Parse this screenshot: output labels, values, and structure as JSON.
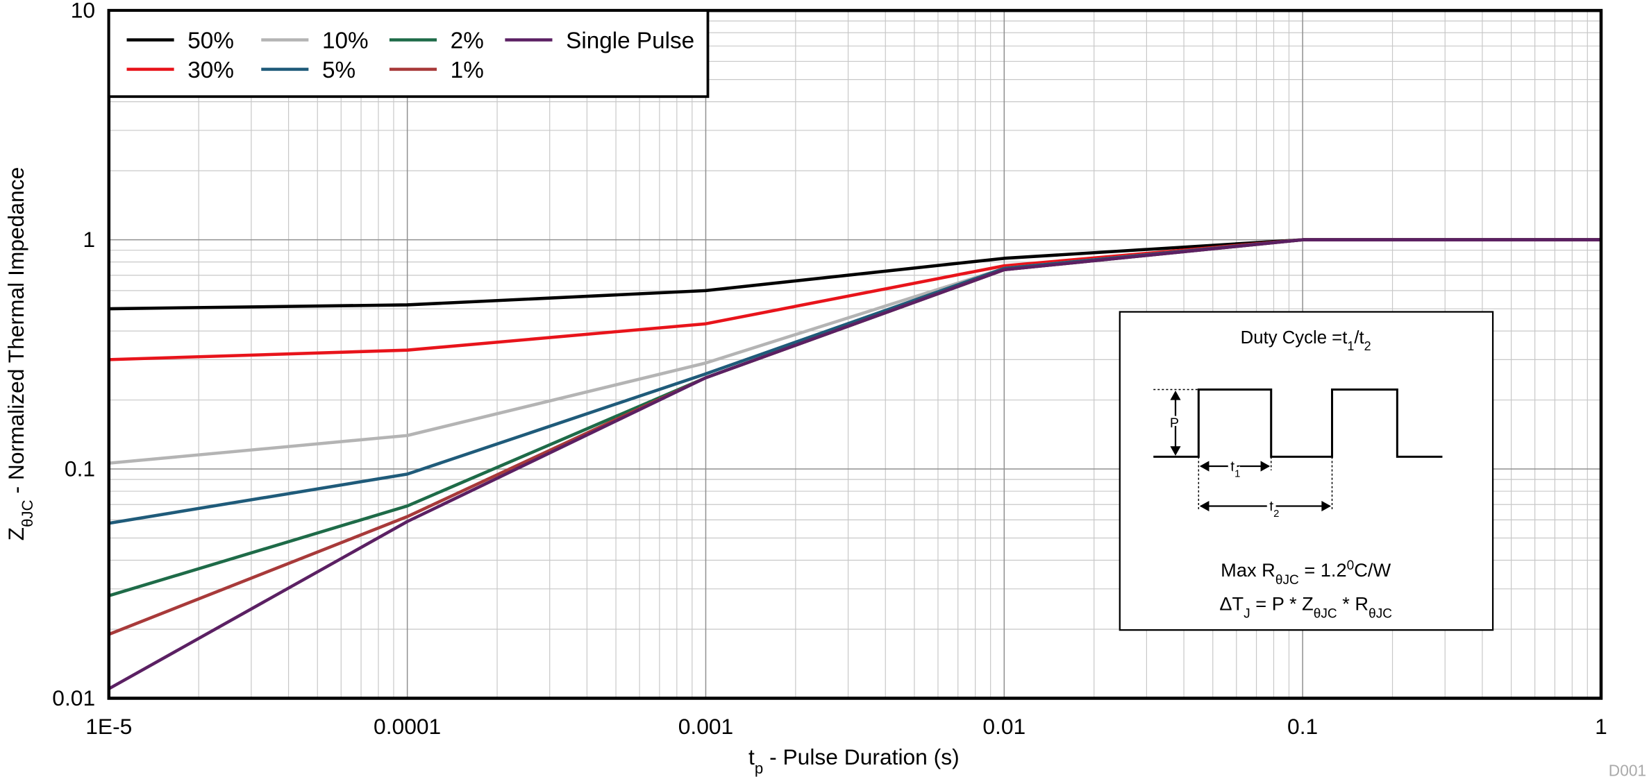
{
  "chart_data": {
    "type": "line",
    "x_label": [
      "t",
      "p",
      " - Pulse Duration (s)"
    ],
    "y_label": [
      "Z",
      "θJC",
      " - Normalized Thermal Impedance"
    ],
    "x": [
      1e-05,
      0.0001,
      0.001,
      0.01,
      0.1,
      1
    ],
    "series": [
      {
        "name": "50%",
        "color": "#000000",
        "values": [
          0.5,
          0.52,
          0.6,
          0.83,
          1,
          1
        ]
      },
      {
        "name": "30%",
        "color": "#e8141b",
        "values": [
          0.3,
          0.33,
          0.43,
          0.77,
          1,
          1
        ]
      },
      {
        "name": "10%",
        "color": "#b4b4b4",
        "values": [
          0.106,
          0.14,
          0.29,
          0.75,
          1,
          1
        ]
      },
      {
        "name": "5%",
        "color": "#1f5b7a",
        "values": [
          0.058,
          0.095,
          0.26,
          0.75,
          1,
          1
        ]
      },
      {
        "name": "2%",
        "color": "#1e6b48",
        "values": [
          0.028,
          0.069,
          0.25,
          0.74,
          1,
          1
        ]
      },
      {
        "name": "1%",
        "color": "#a83a3a",
        "values": [
          0.019,
          0.062,
          0.25,
          0.74,
          1,
          1
        ]
      },
      {
        "name": "Single Pulse",
        "color": "#5b2063",
        "values": [
          0.011,
          0.059,
          0.25,
          0.74,
          1,
          1
        ]
      }
    ],
    "xlim": [
      1e-05,
      1
    ],
    "ylim": [
      0.01,
      10
    ],
    "xticks": [
      {
        "value": 1e-05,
        "label": "1E-5"
      },
      0.0001,
      0.001,
      0.01,
      0.1,
      1
    ],
    "yticks": [
      0.01,
      0.1,
      1,
      10
    ],
    "log_x": true,
    "log_y": true,
    "grid": true,
    "legend": "upper left",
    "inset": {
      "title": [
        "Duty Cycle =t",
        "1",
        "/t",
        "2"
      ],
      "pulse_label": "P",
      "t1": [
        "t",
        "1"
      ],
      "t2": [
        "t",
        "2"
      ],
      "max_r": [
        "Max R",
        "θJC",
        " = 1.2",
        "0",
        "C/W"
      ],
      "delta": [
        "ΔT",
        "J",
        " = P * Z",
        "θJC",
        " * R",
        "θJC"
      ]
    },
    "figure_id": "D001"
  }
}
